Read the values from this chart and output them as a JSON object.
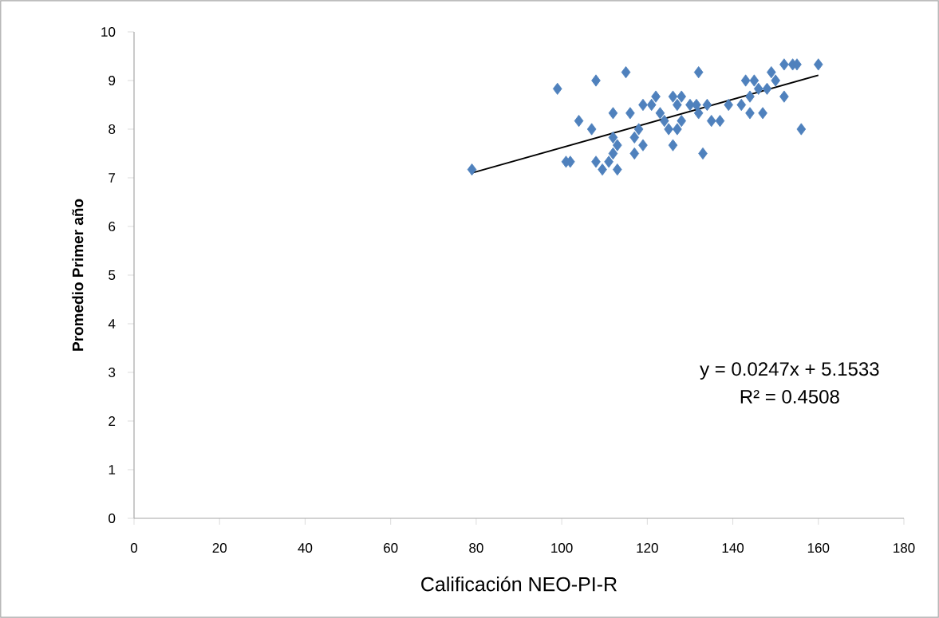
{
  "chart_data": {
    "type": "scatter",
    "xlabel": "Calificación NEO-PI-R",
    "ylabel": "Promedio Primer año",
    "series": [
      {
        "color": "#4f81bd",
        "marker": "diamond",
        "x": [
          79,
          99,
          101,
          102,
          104,
          107,
          108,
          108,
          109.5,
          111,
          112,
          112,
          112,
          113,
          113,
          115,
          116,
          117,
          117,
          118,
          119,
          119,
          121,
          122,
          123,
          124,
          125,
          126,
          126,
          127,
          127,
          128,
          128,
          130,
          132,
          131.5,
          132,
          133,
          134,
          135,
          137,
          139,
          142,
          143,
          144,
          144,
          145,
          146,
          147,
          148,
          149,
          150,
          152,
          152,
          154,
          155,
          156,
          160
        ],
        "values": [
          7.17,
          8.83,
          7.33,
          7.33,
          8.17,
          8.0,
          9.0,
          7.33,
          7.17,
          7.33,
          8.33,
          7.83,
          7.5,
          7.67,
          7.17,
          9.17,
          8.33,
          7.83,
          7.5,
          8.0,
          8.5,
          7.67,
          8.5,
          8.67,
          8.33,
          8.17,
          8.0,
          7.67,
          8.67,
          8.0,
          8.5,
          8.67,
          8.17,
          8.5,
          9.17,
          8.5,
          8.33,
          7.5,
          8.5,
          8.17,
          8.17,
          8.5,
          8.5,
          9.0,
          8.67,
          8.33,
          9.0,
          8.83,
          8.33,
          8.83,
          9.17,
          9.0,
          8.67,
          9.33,
          9.33,
          9.33,
          8.0,
          9.33
        ]
      },
      {
        "type": "line",
        "color": "#000000",
        "marker": "none",
        "x": [
          79,
          160
        ],
        "values": [
          7.1,
          9.11
        ]
      }
    ],
    "annotations": [
      "y = 0.0247x + 5.1533",
      "R² = 0.4508"
    ],
    "xlim": [
      0,
      180
    ],
    "xticks": [
      0,
      20,
      40,
      60,
      80,
      100,
      120,
      140,
      160,
      180
    ],
    "ylim": [
      0,
      10
    ],
    "yticks": [
      0,
      1,
      2,
      3,
      4,
      5,
      6,
      7,
      8,
      9,
      10
    ],
    "grid": false
  }
}
